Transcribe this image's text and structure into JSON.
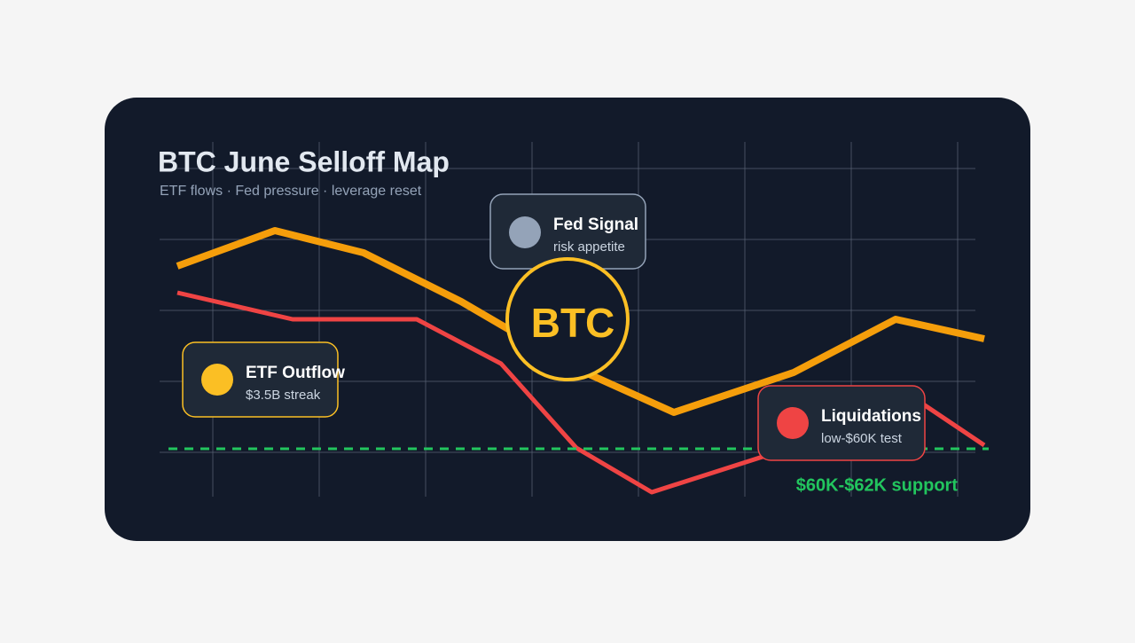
{
  "header": {
    "title": "BTC June Selloff Map",
    "subtitle": "ETF flows · Fed pressure · leverage reset"
  },
  "center": {
    "label": "BTC"
  },
  "cards": [
    {
      "title": "Fed Signal",
      "detail": "risk appetite"
    },
    {
      "title": "ETF Outflow",
      "detail": "$3.5B streak"
    },
    {
      "title": "Liquidations",
      "detail": "low-$60K test"
    }
  ],
  "support": {
    "label": "$60K-$62K support"
  }
}
